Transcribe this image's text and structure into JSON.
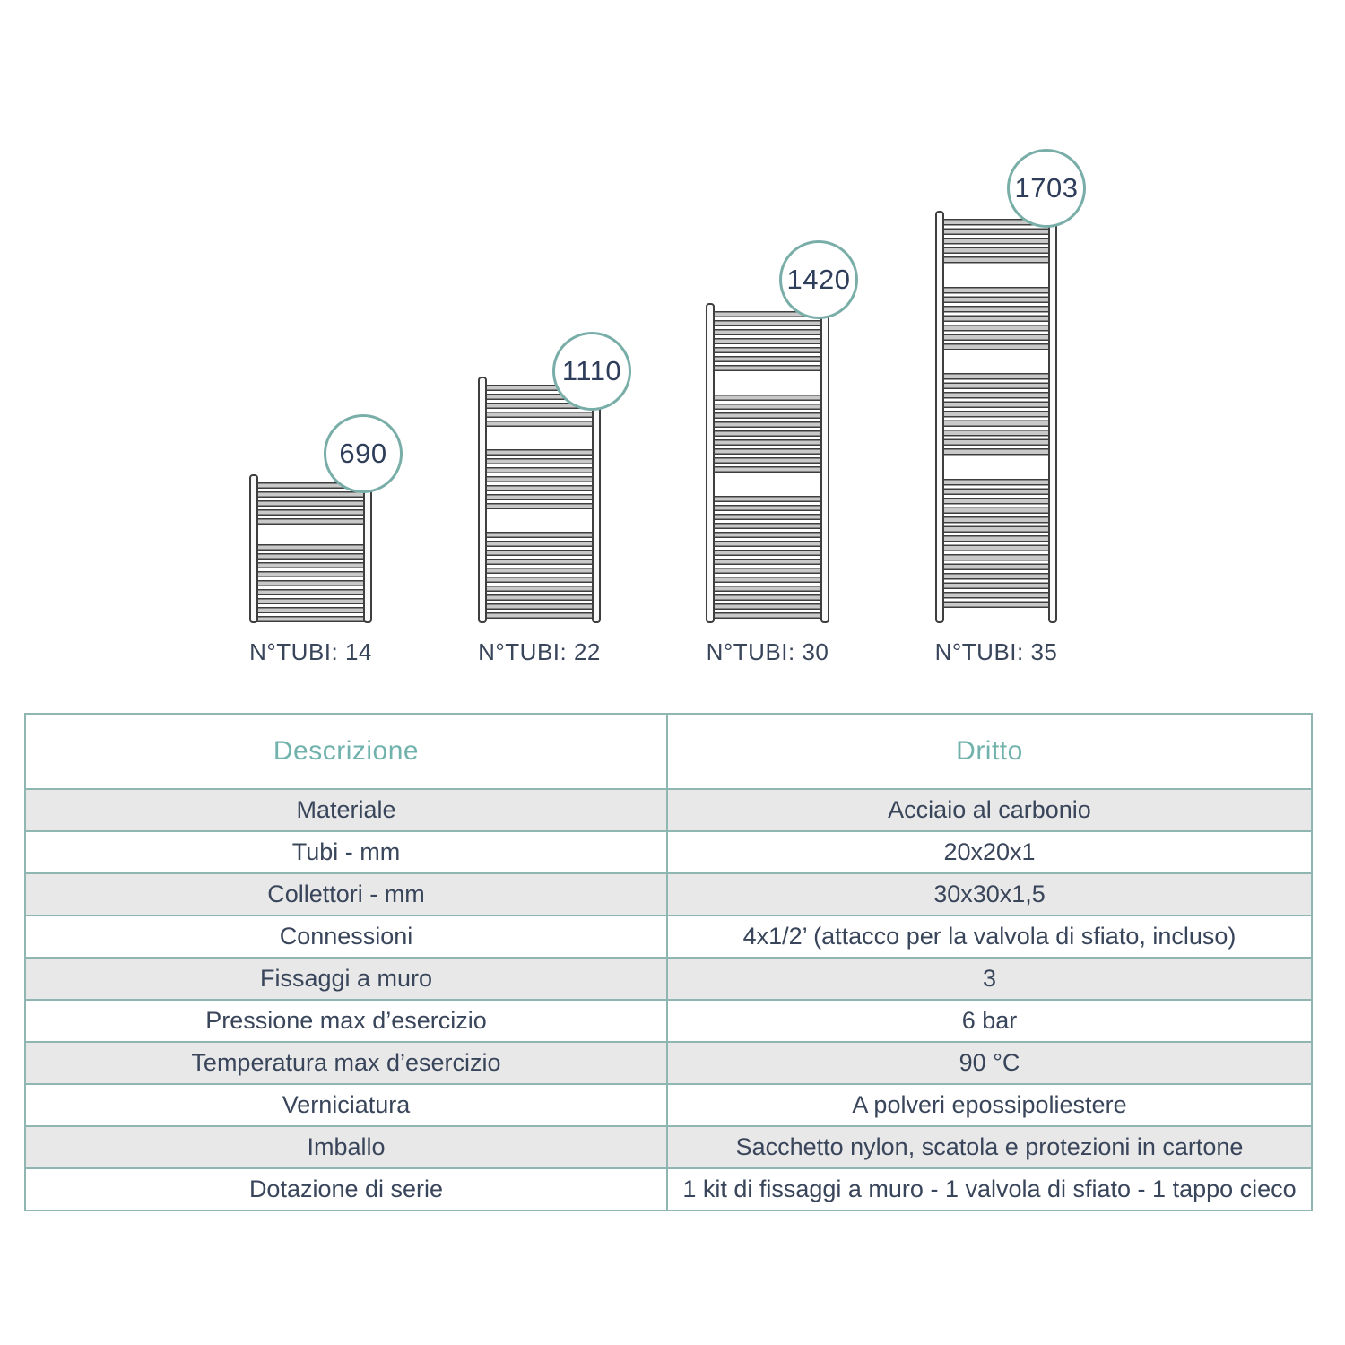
{
  "diagram": {
    "radiators": [
      {
        "height_mm": "690",
        "tubes_label": "N°TUBI: 14",
        "tube_groups": [
          5,
          9
        ]
      },
      {
        "height_mm": "1110",
        "tubes_label": "N°TUBI: 22",
        "tube_groups": [
          5,
          7,
          10
        ]
      },
      {
        "height_mm": "1420",
        "tubes_label": "N°TUBI: 30",
        "tube_groups": [
          7,
          9,
          14
        ]
      },
      {
        "height_mm": "1703",
        "tubes_label": "N°TUBI: 35",
        "tube_groups": [
          5,
          7,
          9,
          14
        ]
      }
    ]
  },
  "table": {
    "headers": [
      "Descrizione",
      "Dritto"
    ],
    "rows": [
      {
        "label": "Materiale",
        "value": "Acciaio al carbonio"
      },
      {
        "label": "Tubi - mm",
        "value": "20x20x1"
      },
      {
        "label": "Collettori - mm",
        "value": "30x30x1,5"
      },
      {
        "label": "Connessioni",
        "value": "4x1/2’ (attacco per la valvola di sfiato, incluso)"
      },
      {
        "label": "Fissaggi a muro",
        "value": "3"
      },
      {
        "label": "Pressione max d’esercizio",
        "value": "6 bar"
      },
      {
        "label": "Temperatura max d’esercizio",
        "value": "90 °C"
      },
      {
        "label": "Verniciatura",
        "value": "A polveri epossipoliestere"
      },
      {
        "label": "Imballo",
        "value": "Sacchetto nylon, scatola e protezioni in cartone"
      },
      {
        "label": "Dotazione di serie",
        "value": "1 kit di fissaggi a muro - 1 valvola di sfiato - 1 tappo cieco"
      }
    ]
  },
  "colors": {
    "accent_teal": "#72b2ad",
    "table_border": "#8fb6b1",
    "circle_border": "#79aea8",
    "text_dark": "#39455a",
    "circle_text": "#2e3d59",
    "row_gray": "#e8e8e8",
    "tube_line": "#3e3e3e",
    "tube_fill": "#c9c9c9"
  }
}
